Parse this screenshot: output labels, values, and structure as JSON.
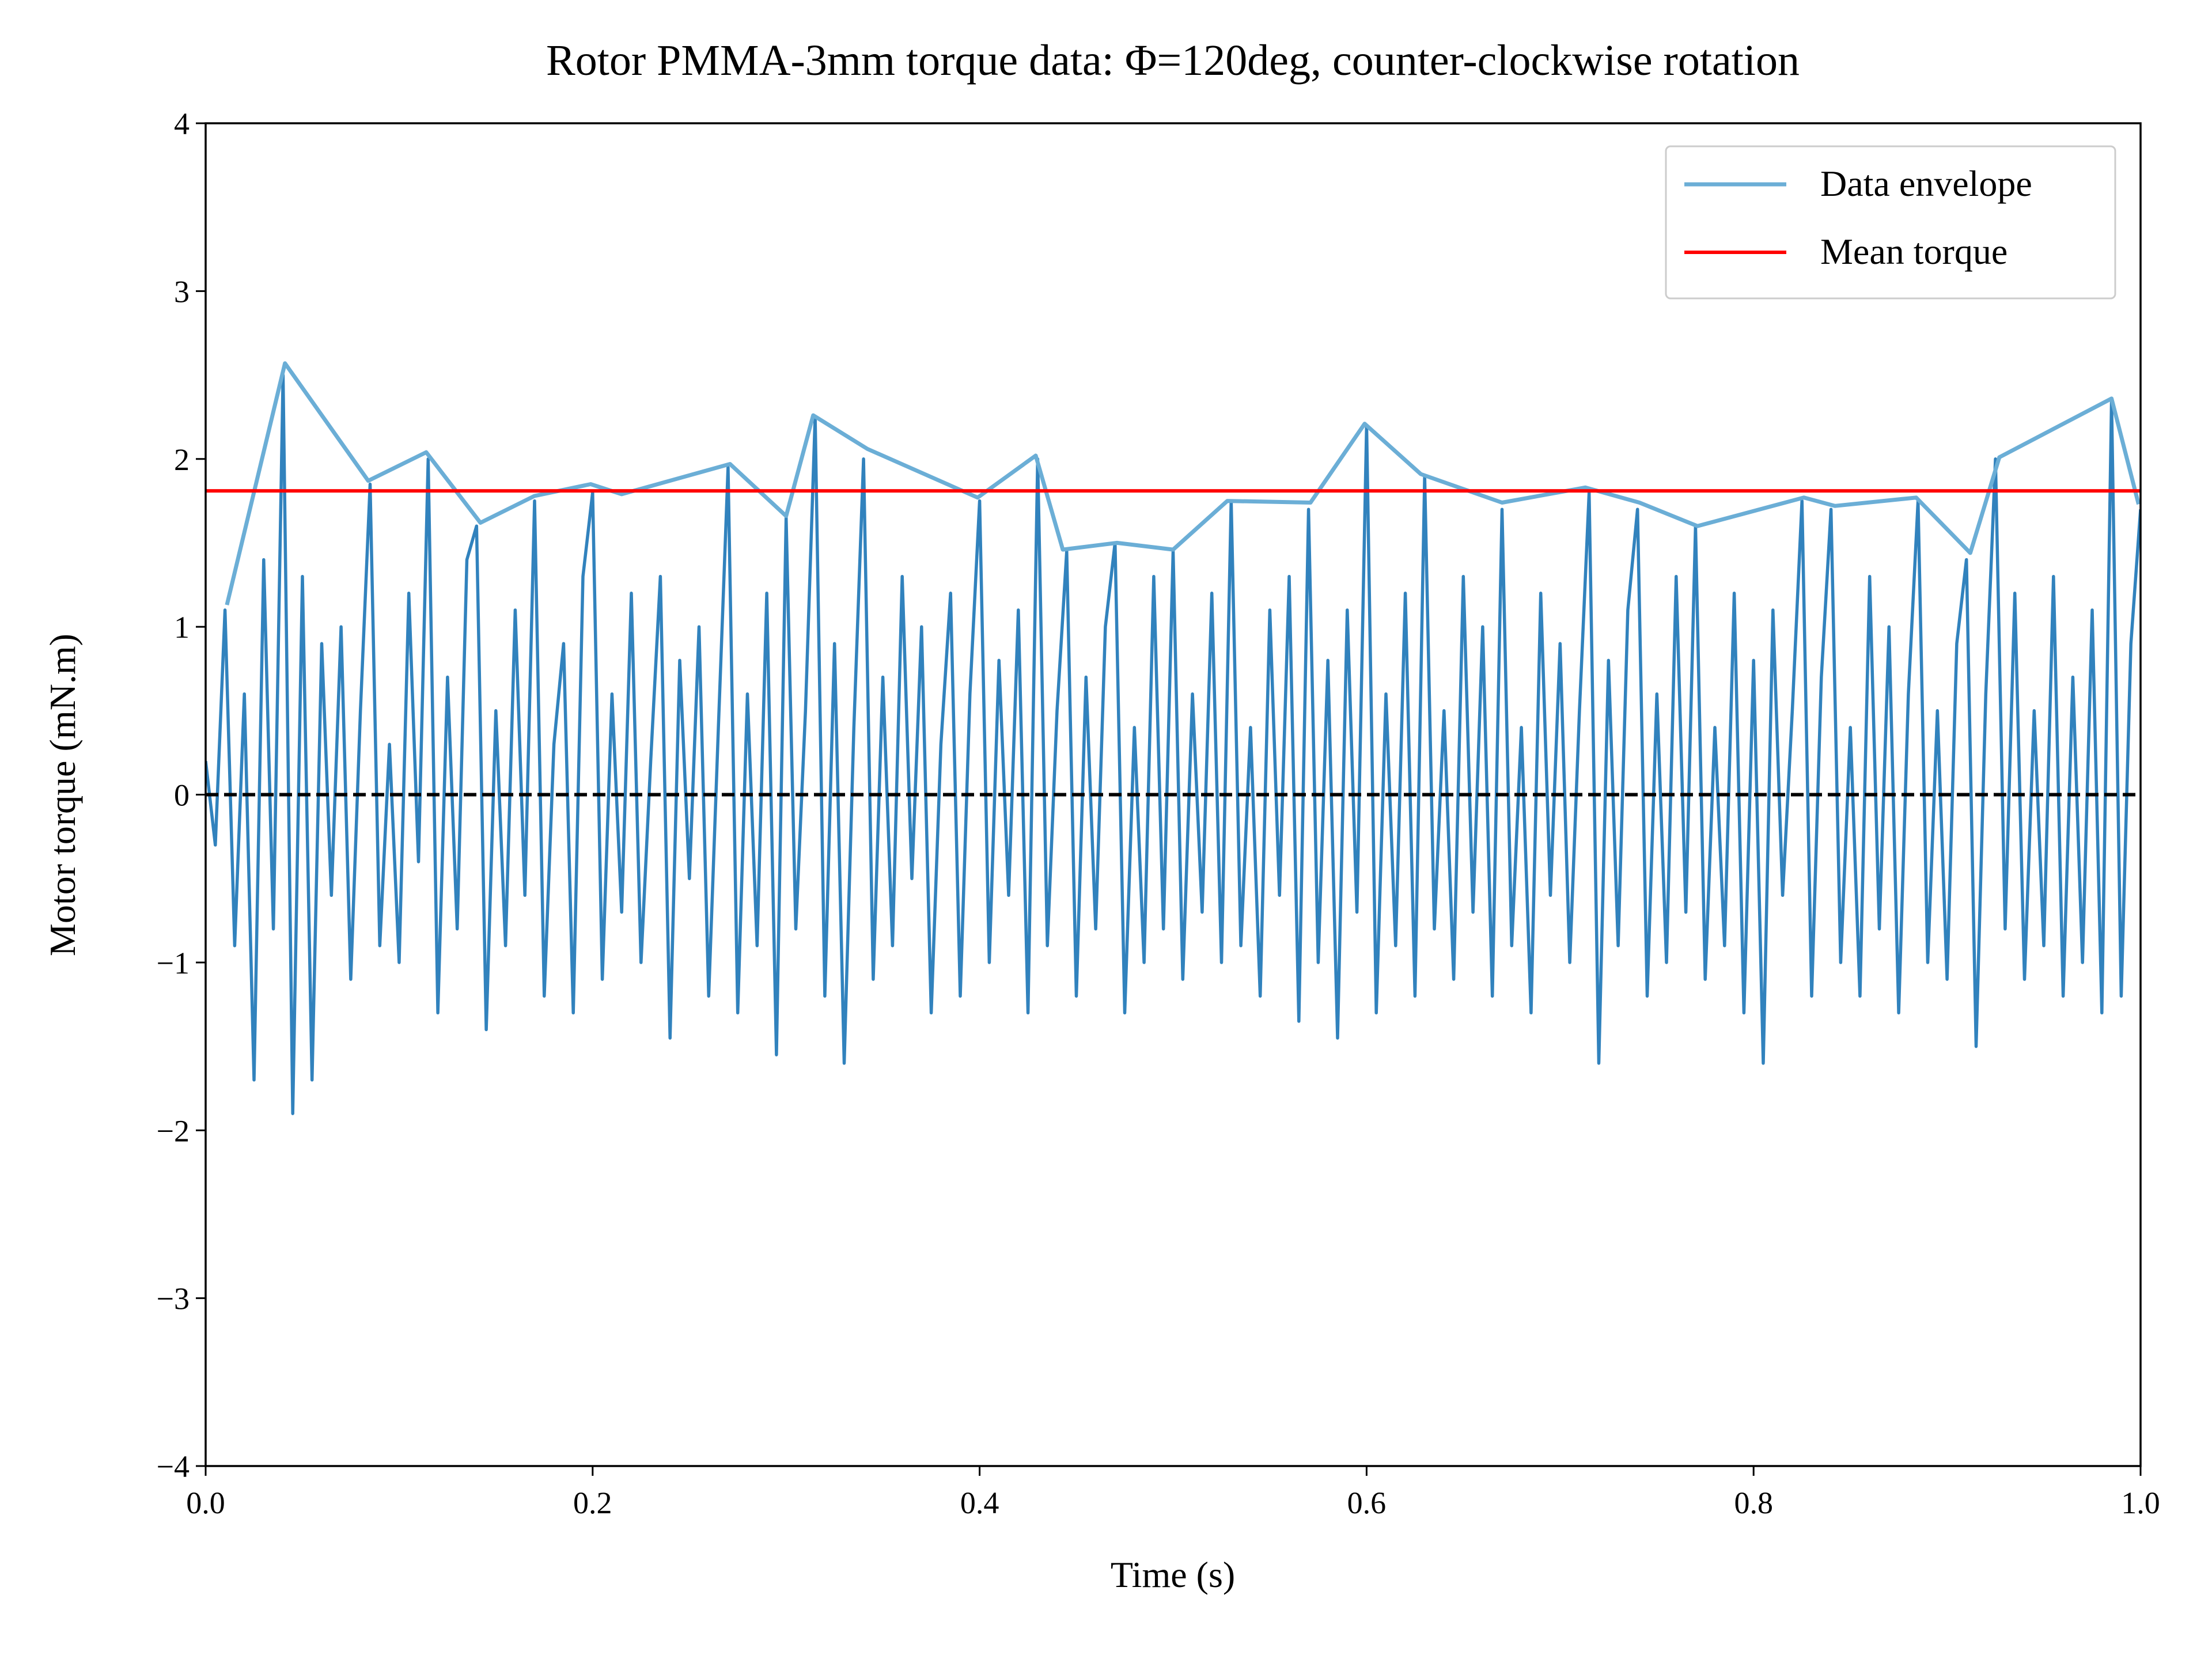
{
  "chart_data": {
    "type": "line",
    "title": "Rotor PMMA-3mm torque data: Φ=120deg, counter-clockwise rotation",
    "xlabel": "Time (s)",
    "ylabel": "Motor torque (mN.m)",
    "xlim": [
      0,
      1
    ],
    "ylim": [
      -4,
      4
    ],
    "xticks": [
      {
        "value": 0,
        "label": "0.0"
      },
      0.2,
      0.4,
      0.6,
      0.8,
      {
        "value": 1,
        "label": "1.0"
      }
    ],
    "yticks": [
      {
        "value": -4,
        "label": "−4"
      },
      {
        "value": -3,
        "label": "−3"
      },
      {
        "value": -2,
        "label": "−2"
      },
      {
        "value": -1,
        "label": "−1"
      },
      0,
      1,
      2,
      3,
      4
    ],
    "legend": "upper right",
    "series": [
      {
        "color": "#3182bd",
        "x": [
          0,
          0.005,
          0.01,
          0.015,
          0.02,
          0.025,
          0.03,
          0.035,
          0.04,
          0.045,
          0.05,
          0.055,
          0.06,
          0.065,
          0.07,
          0.075,
          0.08,
          0.085,
          0.09,
          0.095,
          0.1,
          0.105,
          0.11,
          0.115,
          0.12,
          0.125,
          0.13,
          0.135,
          0.14,
          0.145,
          0.15,
          0.155,
          0.16,
          0.165,
          0.17,
          0.175,
          0.18,
          0.185,
          0.19,
          0.195,
          0.2,
          0.205,
          0.21,
          0.215,
          0.22,
          0.225,
          0.23,
          0.235,
          0.24,
          0.245,
          0.25,
          0.255,
          0.26,
          0.265,
          0.27,
          0.275,
          0.28,
          0.285,
          0.29,
          0.295,
          0.3,
          0.305,
          0.31,
          0.315,
          0.32,
          0.325,
          0.33,
          0.335,
          0.34,
          0.345,
          0.35,
          0.355,
          0.36,
          0.365,
          0.37,
          0.375,
          0.38,
          0.385,
          0.39,
          0.395,
          0.4,
          0.405,
          0.41,
          0.415,
          0.42,
          0.425,
          0.43,
          0.435,
          0.44,
          0.445,
          0.45,
          0.455,
          0.46,
          0.465,
          0.47,
          0.475,
          0.48,
          0.485,
          0.49,
          0.495,
          0.5,
          0.505,
          0.51,
          0.515,
          0.52,
          0.525,
          0.53,
          0.535,
          0.54,
          0.545,
          0.55,
          0.555,
          0.56,
          0.565,
          0.57,
          0.575,
          0.58,
          0.585,
          0.59,
          0.595,
          0.6,
          0.605,
          0.61,
          0.615,
          0.62,
          0.625,
          0.63,
          0.635,
          0.64,
          0.645,
          0.65,
          0.655,
          0.66,
          0.665,
          0.67,
          0.675,
          0.68,
          0.685,
          0.69,
          0.695,
          0.7,
          0.705,
          0.71,
          0.715,
          0.72,
          0.725,
          0.73,
          0.735,
          0.74,
          0.745,
          0.75,
          0.755,
          0.76,
          0.765,
          0.77,
          0.775,
          0.78,
          0.785,
          0.79,
          0.795,
          0.8,
          0.805,
          0.81,
          0.815,
          0.82,
          0.825,
          0.83,
          0.835,
          0.84,
          0.845,
          0.85,
          0.855,
          0.86,
          0.865,
          0.87,
          0.875,
          0.88,
          0.885,
          0.89,
          0.895,
          0.9,
          0.905,
          0.91,
          0.915,
          0.92,
          0.925,
          0.93,
          0.935,
          0.94,
          0.945,
          0.95,
          0.955,
          0.96,
          0.965,
          0.97,
          0.975,
          0.98,
          0.985,
          0.99,
          0.995,
          1
        ],
        "values": [
          0.2,
          -0.3,
          1.1,
          -0.9,
          0.6,
          -1.7,
          1.4,
          -0.8,
          2.5,
          -1.9,
          1.3,
          -1.7,
          0.9,
          -0.6,
          1.0,
          -1.1,
          0.5,
          1.85,
          -0.9,
          0.3,
          -1.0,
          1.2,
          -0.4,
          2.0,
          -1.3,
          0.7,
          -0.8,
          1.4,
          1.6,
          -1.4,
          0.5,
          -0.9,
          1.1,
          -0.6,
          1.75,
          -1.2,
          0.3,
          0.9,
          -1.3,
          1.3,
          1.8,
          -1.1,
          0.6,
          -0.7,
          1.2,
          -1.0,
          0.2,
          1.3,
          -1.45,
          0.8,
          -0.5,
          1.0,
          -1.2,
          0.4,
          1.95,
          -1.3,
          0.6,
          -0.9,
          1.2,
          -1.55,
          1.65,
          -0.8,
          0.5,
          2.25,
          -1.2,
          0.9,
          -1.6,
          0.4,
          2.0,
          -1.1,
          0.7,
          -0.9,
          1.3,
          -0.5,
          1.0,
          -1.3,
          0.3,
          1.2,
          -1.2,
          0.6,
          1.75,
          -1.0,
          0.8,
          -0.6,
          1.1,
          -1.3,
          2.0,
          -0.9,
          0.5,
          1.45,
          -1.2,
          0.7,
          -0.8,
          1.0,
          1.5,
          -1.3,
          0.4,
          -1.0,
          1.3,
          -0.8,
          1.45,
          -1.1,
          0.6,
          -0.7,
          1.2,
          -1.0,
          1.75,
          -0.9,
          0.4,
          -1.2,
          1.1,
          -0.6,
          1.3,
          -1.35,
          1.7,
          -1.0,
          0.8,
          -1.45,
          1.1,
          -0.7,
          2.2,
          -1.3,
          0.6,
          -0.9,
          1.2,
          -1.2,
          1.9,
          -0.8,
          0.5,
          -1.1,
          1.3,
          -0.7,
          1.0,
          -1.2,
          1.7,
          -0.9,
          0.4,
          -1.3,
          1.2,
          -0.6,
          0.9,
          -1.0,
          0.5,
          1.8,
          -1.6,
          0.8,
          -0.9,
          1.1,
          1.7,
          -1.2,
          0.6,
          -1.0,
          1.3,
          -0.7,
          1.6,
          -1.1,
          0.4,
          -0.9,
          1.2,
          -1.3,
          0.8,
          -1.6,
          1.1,
          -0.6,
          0.5,
          1.75,
          -1.2,
          0.7,
          1.7,
          -1.0,
          0.4,
          -1.2,
          1.3,
          -0.8,
          1.0,
          -1.3,
          0.6,
          1.75,
          -1.0,
          0.5,
          -1.1,
          0.9,
          1.4,
          -1.5,
          0.6,
          2.0,
          -0.8,
          1.2,
          -1.1,
          0.5,
          -0.9,
          1.3,
          -1.2,
          0.7,
          -1.0,
          1.1,
          -1.3,
          2.35,
          -1.2,
          0.9,
          1.7
        ]
      },
      {
        "name": "Data envelope",
        "color": "#6baed6",
        "x": [
          0.011,
          0.041,
          0.084,
          0.114,
          0.142,
          0.17,
          0.199,
          0.215,
          0.271,
          0.3,
          0.314,
          0.342,
          0.399,
          0.429,
          0.443,
          0.471,
          0.5,
          0.528,
          0.571,
          0.599,
          0.628,
          0.67,
          0.713,
          0.741,
          0.771,
          0.826,
          0.842,
          0.884,
          0.912,
          0.927,
          0.985,
          0.999
        ],
        "values": [
          1.13,
          2.57,
          1.87,
          2.04,
          1.62,
          1.78,
          1.85,
          1.79,
          1.97,
          1.66,
          2.26,
          2.06,
          1.77,
          2.02,
          1.46,
          1.5,
          1.46,
          1.75,
          1.74,
          2.21,
          1.91,
          1.74,
          1.83,
          1.74,
          1.6,
          1.77,
          1.72,
          1.77,
          1.44,
          2.01,
          2.36,
          1.73
        ]
      }
    ],
    "hlines": [
      {
        "name": "Mean torque",
        "color": "#ff0000",
        "value": 1.81
      },
      {
        "color": "#000000",
        "value": 0,
        "style": "dashed"
      }
    ]
  }
}
